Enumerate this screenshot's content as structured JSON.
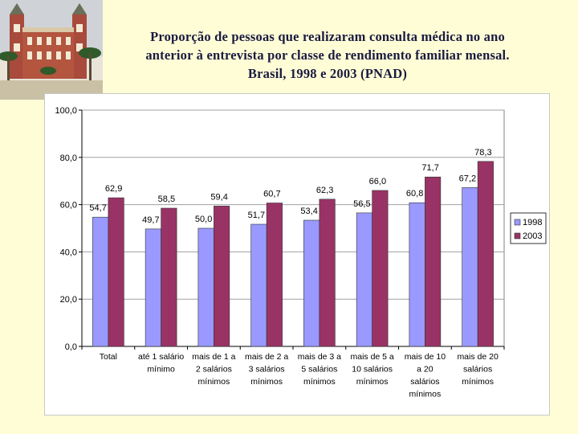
{
  "title_lines": [
    "Proporção de pessoas que realizaram consulta médica no ano",
    "anterior à entrevista por classe de rendimento familiar mensal.",
    "Brasil, 1998 e 2003 (PNAD)"
  ],
  "logo": {
    "icon": "castle-building-icon"
  },
  "chart_data": {
    "type": "bar",
    "title": "Proporção de pessoas que realizaram consulta médica no ano anterior à entrevista por classe de rendimento familiar mensal. Brasil, 1998 e 2003 (PNAD)",
    "xlabel": "",
    "ylabel": "",
    "categories": [
      "Total",
      "até 1 salário mínimo",
      "mais de 1 a 2 salários mínimos",
      "mais de 2 a 3 salários mínimos",
      "mais de 3 a 5 salários mínimos",
      "mais de 5 a 10 salários mínimos",
      "mais de 10 a 20 salários mínimos",
      "mais de 20 salários mínimos"
    ],
    "category_lines": [
      [
        "Total"
      ],
      [
        "até 1 salário",
        "mínimo"
      ],
      [
        "mais de 1 a",
        "2 salários",
        "mínimos"
      ],
      [
        "mais de 2 a",
        "3 salários",
        "mínimos"
      ],
      [
        "mais de 3 a",
        "5 salários",
        "mínimos"
      ],
      [
        "mais de 5 a",
        "10 salários",
        "mínimos"
      ],
      [
        "mais de 10",
        "a 20",
        "salários",
        "mínimos"
      ],
      [
        "mais de 20",
        "salários",
        "mínimos"
      ]
    ],
    "series": [
      {
        "name": "1998",
        "color": "#9999ff",
        "values": [
          54.7,
          49.7,
          50.0,
          51.7,
          53.4,
          56.5,
          60.8,
          67.2
        ]
      },
      {
        "name": "2003",
        "color": "#993366",
        "values": [
          62.9,
          58.5,
          59.4,
          60.7,
          62.3,
          66.0,
          71.7,
          78.3
        ]
      }
    ],
    "ylim": [
      0,
      100
    ],
    "yticks": [
      0,
      20,
      40,
      60,
      80,
      100
    ],
    "ytick_labels": [
      "0,0",
      "20,0",
      "40,0",
      "60,0",
      "80,0",
      "100,0"
    ],
    "grid": true,
    "legend": "right",
    "plot_background": "#ffffff"
  }
}
